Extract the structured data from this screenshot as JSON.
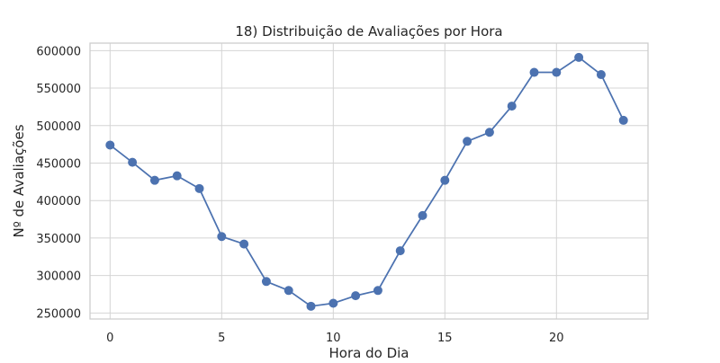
{
  "chart_data": {
    "type": "line",
    "title": "18) Distribuição de Avaliações por Hora",
    "xlabel": "Hora do Dia",
    "ylabel": "Nº de Avaliações",
    "xlim": [
      -0.9,
      24.1
    ],
    "ylim": [
      242000,
      610000
    ],
    "xticks": [
      0,
      5,
      10,
      15,
      20
    ],
    "yticks": [
      250000,
      300000,
      350000,
      400000,
      450000,
      500000,
      550000,
      600000
    ],
    "grid": true,
    "series": [
      {
        "name": "Nº de Avaliações",
        "color": "#4c72b0",
        "marker": "circle",
        "x": [
          0,
          1,
          2,
          3,
          4,
          5,
          6,
          7,
          8,
          9,
          10,
          11,
          12,
          13,
          14,
          15,
          16,
          17,
          18,
          19,
          20,
          21,
          22,
          23
        ],
        "y": [
          474000,
          451000,
          427000,
          433000,
          416000,
          352000,
          342000,
          292000,
          280000,
          259000,
          263000,
          273000,
          280000,
          333000,
          380000,
          427000,
          479000,
          491000,
          526000,
          571000,
          571000,
          591000,
          568000,
          507000
        ]
      }
    ]
  }
}
